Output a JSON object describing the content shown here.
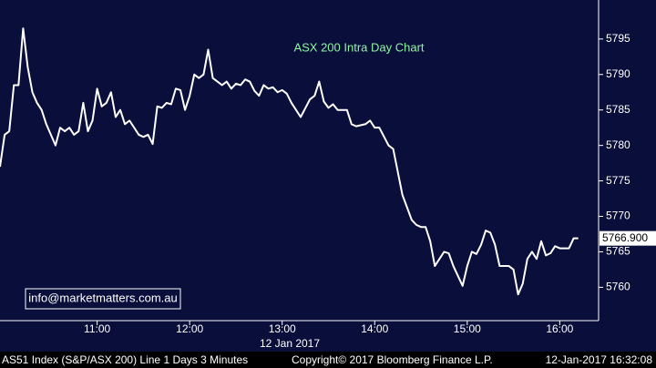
{
  "chart_data": {
    "type": "line",
    "title": "ASX 200 Intra Day Chart",
    "contact": "info@marketmatters.com.au",
    "date_label": "12 Jan 2017",
    "footer": [
      "AS51 Index (S&P/ASX 200) Line 1 Days 3 Minutes",
      "Copyright© 2017 Bloomberg Finance L.P.",
      "12-Jan-2017 16:32:08"
    ],
    "x": [
      9.95,
      10.0,
      10.05,
      10.1,
      10.15,
      10.2,
      10.25,
      10.3,
      10.35,
      10.4,
      10.45,
      10.55,
      10.6,
      10.65,
      10.7,
      10.75,
      10.8,
      10.85,
      10.9,
      10.95,
      11.0,
      11.05,
      11.1,
      11.15,
      11.2,
      11.25,
      11.3,
      11.35,
      11.45,
      11.5,
      11.55,
      11.6,
      11.65,
      11.7,
      11.75,
      11.8,
      11.85,
      11.9,
      11.95,
      12.0,
      12.05,
      12.1,
      12.15,
      12.2,
      12.25,
      12.3,
      12.35,
      12.4,
      12.45,
      12.5,
      12.55,
      12.6,
      12.65,
      12.7,
      12.75,
      12.8,
      12.85,
      12.9,
      12.95,
      13.0,
      13.05,
      13.1,
      13.2,
      13.3,
      13.35,
      13.4,
      13.45,
      13.5,
      13.55,
      13.6,
      13.7,
      13.75,
      13.8,
      13.9,
      13.95,
      14.0,
      14.05,
      14.15,
      14.2,
      14.3,
      14.4,
      14.45,
      14.5,
      14.55,
      14.6,
      14.65,
      14.75,
      14.8,
      14.85,
      14.95,
      15.0,
      15.05,
      15.1,
      15.15,
      15.2,
      15.25,
      15.3,
      15.35,
      15.4,
      15.45,
      15.5,
      15.55,
      15.6,
      15.65,
      15.7,
      15.75,
      15.8,
      15.85,
      15.9,
      15.95,
      16.0,
      16.05,
      16.1,
      16.15,
      16.2
    ],
    "series": [
      {
        "name": "AS51 Index",
        "color": "#ffffff",
        "values": [
          5777,
          5781.5,
          5782,
          5788.5,
          5788.5,
          5796.5,
          5791,
          5787.5,
          5786,
          5785,
          5783,
          5780,
          5782.5,
          5782,
          5782.5,
          5781.5,
          5782,
          5786,
          5782,
          5783.5,
          5788,
          5785.5,
          5786,
          5787.5,
          5784,
          5785,
          5783,
          5783.5,
          5781.5,
          5781.2,
          5781.5,
          5780.2,
          5785.5,
          5785.3,
          5786,
          5785.8,
          5788,
          5787.8,
          5785,
          5787,
          5790,
          5789.5,
          5790,
          5793.5,
          5789.5,
          5789,
          5788.5,
          5789,
          5788,
          5788.7,
          5788.5,
          5789.3,
          5789,
          5787.7,
          5787,
          5788.5,
          5788,
          5788.2,
          5787.5,
          5787.8,
          5787.3,
          5786,
          5784,
          5786.5,
          5787,
          5789,
          5786.2,
          5785.3,
          5785.8,
          5785,
          5785,
          5783,
          5782.7,
          5783,
          5783.5,
          5782.5,
          5782.5,
          5780,
          5779.5,
          5773,
          5769.5,
          5768.8,
          5768.5,
          5768.5,
          5766.5,
          5763,
          5765,
          5764.8,
          5763,
          5760.2,
          5763,
          5765,
          5764.7,
          5766,
          5768,
          5767.7,
          5766,
          5763,
          5763,
          5763,
          5762.5,
          5759,
          5760.5,
          5764,
          5765,
          5764,
          5766.5,
          5764.5,
          5764.8,
          5765.8,
          5765.5,
          5765.5,
          5765.5,
          5766.9,
          5766.9
        ]
      }
    ],
    "last_price": {
      "value": 5766.9,
      "label": "5766.900"
    },
    "xlim": [
      9.95,
      16.42
    ],
    "xticks": [
      {
        "value": 11,
        "label": "11:00"
      },
      {
        "value": 12,
        "label": "12:00"
      },
      {
        "value": 13,
        "label": "13:00"
      },
      {
        "value": 14,
        "label": "14:00"
      },
      {
        "value": 15,
        "label": "15:00"
      },
      {
        "value": 16,
        "label": "16:00"
      }
    ],
    "ylim": [
      5755.3,
      5800.5
    ],
    "yticks": [
      5760,
      5765,
      5770,
      5775,
      5780,
      5785,
      5790,
      5795
    ],
    "grid": false
  }
}
